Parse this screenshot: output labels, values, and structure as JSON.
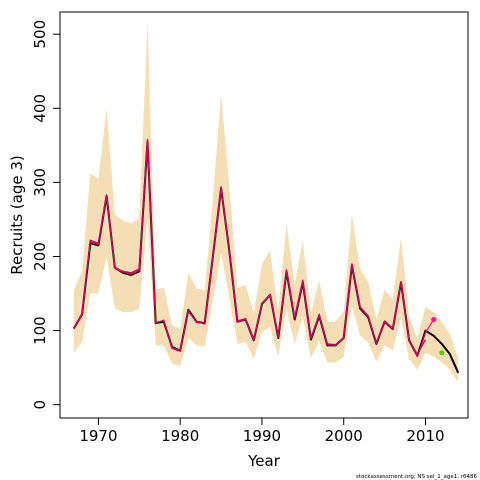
{
  "chart_data": {
    "type": "line",
    "title": "",
    "xlabel": "Year",
    "ylabel": "Recruits (age 3)",
    "xlim": [
      1965.3,
      2015.2
    ],
    "ylim": [
      -18,
      530
    ],
    "x_ticks": [
      1970,
      1980,
      1990,
      2000,
      2010
    ],
    "y_ticks": [
      0,
      100,
      200,
      300,
      400,
      500
    ],
    "grid": false,
    "legend": "none",
    "caption": "stockassessment.org, NS  sei_1_age1, r6486",
    "colors": {
      "band": "#f5deb3",
      "estimate": "#000000",
      "retro": "#c8005a",
      "forecast_pink": "#ff1493",
      "forecast_green": "#66cc00"
    },
    "x": [
      1967,
      1968,
      1969,
      1970,
      1971,
      1972,
      1973,
      1974,
      1975,
      1976,
      1977,
      1978,
      1979,
      1980,
      1981,
      1982,
      1983,
      1984,
      1985,
      1986,
      1987,
      1988,
      1989,
      1990,
      1991,
      1992,
      1993,
      1994,
      1995,
      1996,
      1997,
      1998,
      1999,
      2000,
      2001,
      2002,
      2003,
      2004,
      2005,
      2006,
      2007,
      2008,
      2009,
      2010,
      2011,
      2012,
      2013,
      2014
    ],
    "series": [
      {
        "values": [
          103,
          122,
          218,
          215,
          282,
          185,
          178,
          175,
          180,
          355,
          110,
          112,
          78,
          73,
          128,
          112,
          110,
          200,
          292,
          208,
          112,
          115,
          87,
          136,
          148,
          90,
          180,
          115,
          165,
          88,
          120,
          80,
          80,
          90,
          188,
          130,
          118,
          82,
          112,
          102,
          165,
          87,
          66,
          100,
          93,
          82,
          68,
          43
        ]
      },
      {
        "values": [
          102,
          122,
          222,
          218,
          283,
          185,
          180,
          178,
          183,
          358,
          110,
          114,
          76,
          72,
          126,
          112,
          109,
          200,
          294,
          210,
          113,
          116,
          88,
          137,
          149,
          92,
          182,
          118,
          168,
          90,
          122,
          82,
          81,
          90,
          190,
          132,
          120,
          83,
          113,
          103,
          166,
          88,
          65,
          97,
          null,
          null,
          null,
          null
        ]
      },
      {
        "values": [
          103,
          123,
          220,
          216,
          282,
          184,
          179,
          176,
          181,
          356,
          111,
          113,
          77,
          73,
          127,
          111,
          110,
          199,
          292,
          208,
          112,
          115,
          87,
          136,
          148,
          91,
          181,
          116,
          166,
          89,
          121,
          81,
          80,
          90,
          189,
          131,
          119,
          82,
          112,
          102,
          165,
          87,
          68,
          88,
          null,
          null,
          null,
          null
        ]
      }
    ],
    "confidence_band": {
      "lower": [
        70,
        85,
        150,
        150,
        200,
        130,
        125,
        125,
        130,
        250,
        80,
        80,
        55,
        52,
        90,
        80,
        78,
        140,
        205,
        145,
        82,
        85,
        62,
        97,
        105,
        65,
        128,
        82,
        118,
        63,
        86,
        57,
        57,
        64,
        133,
        93,
        84,
        58,
        80,
        73,
        117,
        62,
        47,
        70,
        65,
        57,
        47,
        30
      ],
      "upper": [
        155,
        180,
        312,
        305,
        400,
        257,
        248,
        245,
        252,
        515,
        155,
        158,
        108,
        102,
        178,
        157,
        154,
        278,
        420,
        295,
        157,
        162,
        123,
        190,
        208,
        127,
        245,
        162,
        222,
        124,
        168,
        112,
        112,
        126,
        257,
        183,
        166,
        115,
        155,
        143,
        225,
        120,
        90,
        132,
        125,
        112,
        95,
        63
      ]
    },
    "forecast_points": [
      {
        "x": 2011,
        "y": 115,
        "color": "#ff1493"
      },
      {
        "x": 2012,
        "y": 70,
        "color": "#66cc00"
      }
    ]
  }
}
